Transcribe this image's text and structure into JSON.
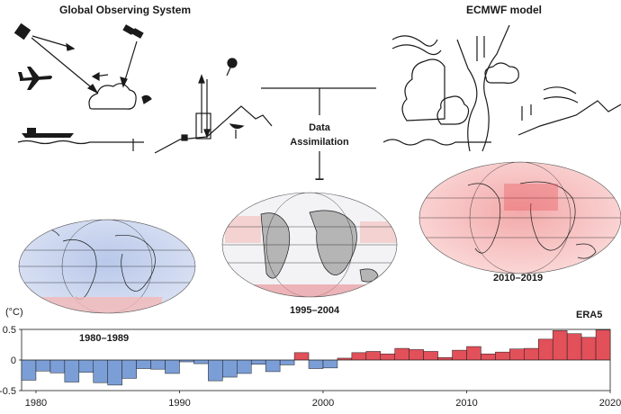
{
  "headers": {
    "left": "Global Observing System",
    "right": "ECMWF model"
  },
  "assimilation": {
    "line1": "Data",
    "line2": "Assimilation"
  },
  "maps": [
    {
      "label": "1980–1989",
      "tone": "cool"
    },
    {
      "label": "1995–2004",
      "tone": "neutral"
    },
    {
      "label": "2010–2019",
      "tone": "warm"
    }
  ],
  "colors": {
    "negative": "#7b9ed6",
    "positive": "#e2505a",
    "land_gray": "#b5b5b5",
    "ink": "#1a1a1a"
  },
  "chart_data": {
    "type": "bar",
    "title": "ERA5",
    "ylabel": "(°C)",
    "ylim": [
      -0.5,
      0.5
    ],
    "yticks": [
      "0.5",
      "0",
      "-0.5"
    ],
    "xticks": [
      "1980",
      "1990",
      "2000",
      "2010",
      "2020"
    ],
    "x": [
      1979,
      1980,
      1981,
      1982,
      1983,
      1984,
      1985,
      1986,
      1987,
      1988,
      1989,
      1990,
      1991,
      1992,
      1993,
      1994,
      1995,
      1996,
      1997,
      1998,
      1999,
      2000,
      2001,
      2002,
      2003,
      2004,
      2005,
      2006,
      2007,
      2008,
      2009,
      2010,
      2011,
      2012,
      2013,
      2014,
      2015,
      2016,
      2017,
      2018,
      2019
    ],
    "values": [
      -0.33,
      -0.18,
      -0.21,
      -0.36,
      -0.2,
      -0.37,
      -0.41,
      -0.3,
      -0.14,
      -0.15,
      -0.22,
      -0.03,
      -0.06,
      -0.34,
      -0.28,
      -0.22,
      -0.07,
      -0.19,
      -0.08,
      0.12,
      -0.14,
      -0.13,
      0.03,
      0.12,
      0.14,
      0.1,
      0.19,
      0.17,
      0.14,
      0.04,
      0.16,
      0.22,
      0.1,
      0.13,
      0.18,
      0.19,
      0.34,
      0.48,
      0.43,
      0.37,
      0.49
    ]
  }
}
